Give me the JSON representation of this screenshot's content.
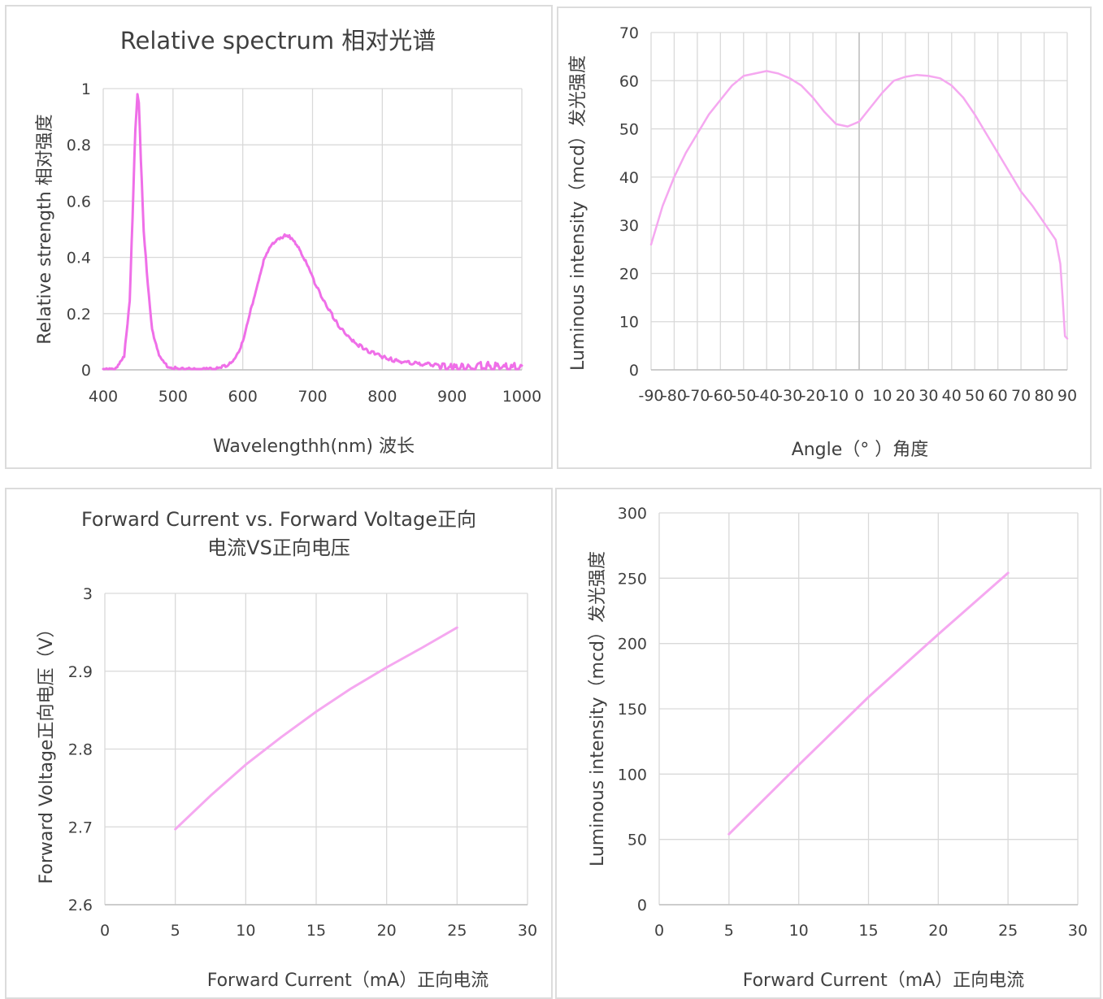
{
  "colors": {
    "spectrum": "#ef6fe8",
    "curve": "#f5a8f0",
    "grid": "#d9d9d9",
    "text": "#404040"
  },
  "charts": [
    {
      "title": "Relative spectrum 相对光谱",
      "chart_data": {
        "type": "line",
        "title": "Relative spectrum 相对光谱",
        "xlabel": "Wavelengthh(nm)  波长",
        "ylabel": "Relative  strength   相对强度",
        "xlim": [
          400,
          1000
        ],
        "ylim": [
          0,
          1
        ],
        "xticks": [
          "400",
          "500",
          "600",
          "700",
          "800",
          "900",
          "1000"
        ],
        "yticks": [
          "0",
          "0.2",
          "0.4",
          "0.6",
          "0.8",
          "1"
        ],
        "grid": true,
        "legend": "none",
        "series": [
          {
            "x": [
              400,
              420,
              430,
              438,
              442,
              446,
              449,
              451,
              454,
              458,
              464,
              470,
              480,
              490,
              500,
              520,
              560,
              580,
              590,
              600,
              610,
              620,
              630,
              640,
              650,
              660,
              665,
              670,
              680,
              690,
              700,
              720,
              740,
              760,
              780,
              800,
              820,
              850,
              880,
              900,
              920,
              950,
              1000
            ],
            "y": [
              0.0,
              0.01,
              0.05,
              0.25,
              0.55,
              0.85,
              0.98,
              0.95,
              0.75,
              0.5,
              0.3,
              0.15,
              0.05,
              0.02,
              0.01,
              0.005,
              0.005,
              0.02,
              0.05,
              0.1,
              0.2,
              0.3,
              0.39,
              0.44,
              0.47,
              0.48,
              0.48,
              0.47,
              0.44,
              0.39,
              0.33,
              0.23,
              0.15,
              0.1,
              0.07,
              0.05,
              0.035,
              0.025,
              0.02,
              0.015,
              0.015,
              0.02,
              0.015
            ]
          }
        ]
      }
    },
    {
      "title": "",
      "chart_data": {
        "type": "line",
        "title": "",
        "xlabel": "Angle（°  ）角度",
        "ylabel": "Luminous intensity（mcd）发光强度",
        "xlim": [
          -90,
          90
        ],
        "ylim": [
          0,
          70
        ],
        "xticks": [
          "-90",
          "-80",
          "-70",
          "-60",
          "-50",
          "-40",
          "-30",
          "-20",
          "-10",
          "0",
          "10",
          "20",
          "30",
          "40",
          "50",
          "60",
          "70",
          "80",
          "90"
        ],
        "yticks": [
          "0",
          "10",
          "20",
          "30",
          "40",
          "50",
          "60",
          "70"
        ],
        "grid": true,
        "legend": "none",
        "series": [
          {
            "x": [
              -90,
              -85,
              -80,
              -75,
              -70,
              -65,
              -60,
              -55,
              -50,
              -45,
              -40,
              -35,
              -30,
              -25,
              -20,
              -15,
              -10,
              -5,
              0,
              5,
              10,
              15,
              20,
              25,
              30,
              35,
              40,
              45,
              50,
              55,
              60,
              65,
              70,
              75,
              80,
              85,
              87,
              88,
              89,
              90
            ],
            "y": [
              26,
              34,
              40,
              45,
              49,
              53,
              56,
              59,
              61,
              61.5,
              62,
              61.5,
              60.5,
              59,
              56.5,
              53.5,
              51,
              50.5,
              51.5,
              54.5,
              57.5,
              60,
              60.8,
              61.2,
              61,
              60.5,
              59,
              56.5,
              53,
              49,
              45,
              41,
              37,
              34,
              30.5,
              27,
              22,
              15,
              7,
              6.5
            ]
          }
        ]
      }
    },
    {
      "title": "Forward Current vs. Forward Voltage正向电流VS正向电压",
      "title_line1": "Forward Current vs. Forward Voltage正向",
      "title_line2": "电流VS正向电压",
      "chart_data": {
        "type": "line",
        "title": "Forward Current vs. Forward Voltage正向电流VS正向电压",
        "xlabel": "Forward Current（mA）正向电流",
        "ylabel": "Forward Voltage正向电压（V）",
        "xlim": [
          0,
          30
        ],
        "ylim": [
          2.6,
          3
        ],
        "xticks": [
          "0",
          "5",
          "10",
          "15",
          "20",
          "25",
          "30"
        ],
        "yticks": [
          "2.6",
          "2.7",
          "2.8",
          "2.9",
          "3"
        ],
        "grid": true,
        "legend": "none",
        "series": [
          {
            "x": [
              5,
              7.5,
              10,
              12.5,
              15,
              17.5,
              20,
              22.5,
              25
            ],
            "y": [
              2.697,
              2.74,
              2.78,
              2.815,
              2.848,
              2.878,
              2.905,
              2.93,
              2.956
            ]
          }
        ]
      }
    },
    {
      "title": "",
      "chart_data": {
        "type": "line",
        "title": "",
        "xlabel": "Forward Current（mA）正向电流",
        "ylabel": "Luminous intensity（mcd）发光强度",
        "xlim": [
          0,
          30
        ],
        "ylim": [
          0,
          300
        ],
        "xticks": [
          "0",
          "5",
          "10",
          "15",
          "20",
          "25",
          "30"
        ],
        "yticks": [
          "0",
          "50",
          "100",
          "150",
          "200",
          "250",
          "300"
        ],
        "grid": true,
        "legend": "none",
        "series": [
          {
            "x": [
              5,
              10,
              15,
              20,
              25
            ],
            "y": [
              54,
              107,
              159,
              207,
              254
            ]
          }
        ]
      }
    }
  ]
}
